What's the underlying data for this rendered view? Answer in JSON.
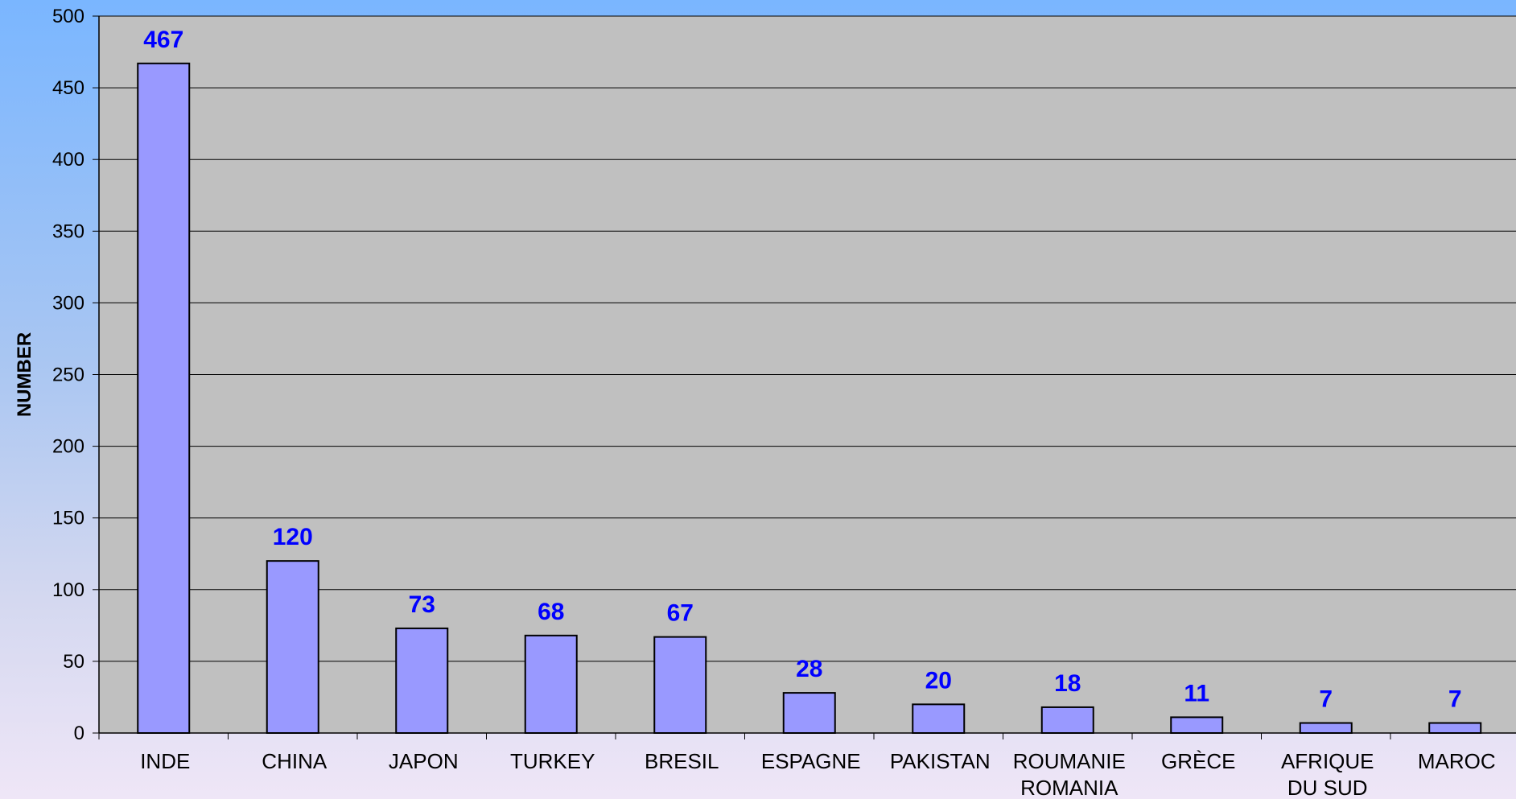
{
  "chart_data": {
    "type": "bar",
    "title": "",
    "xlabel": "",
    "ylabel": "NUMBER",
    "ylim": [
      0,
      500
    ],
    "ytick_step": 50,
    "ytick_labels": [
      "0",
      "50",
      "100",
      "150",
      "200",
      "250",
      "300",
      "350",
      "400",
      "450",
      "500"
    ],
    "grid": true,
    "categories": [
      [
        "INDE"
      ],
      [
        "CHINA"
      ],
      [
        "JAPON"
      ],
      [
        "TURKEY"
      ],
      [
        "BRESIL"
      ],
      [
        "ESPAGNE"
      ],
      [
        "PAKISTAN"
      ],
      [
        "ROUMANIE",
        "ROMANIA"
      ],
      [
        "GRÈCE"
      ],
      [
        "AFRIQUE",
        "DU SUD"
      ],
      [
        "MAROC"
      ]
    ],
    "values": [
      467,
      120,
      73,
      68,
      67,
      28,
      20,
      18,
      11,
      7,
      7
    ],
    "colors": {
      "bar_fill": "#9999ff",
      "bar_stroke": "#000000",
      "plot_background": "#c0c0c0",
      "gridline": "#000000",
      "data_label": "#0000ff"
    }
  }
}
